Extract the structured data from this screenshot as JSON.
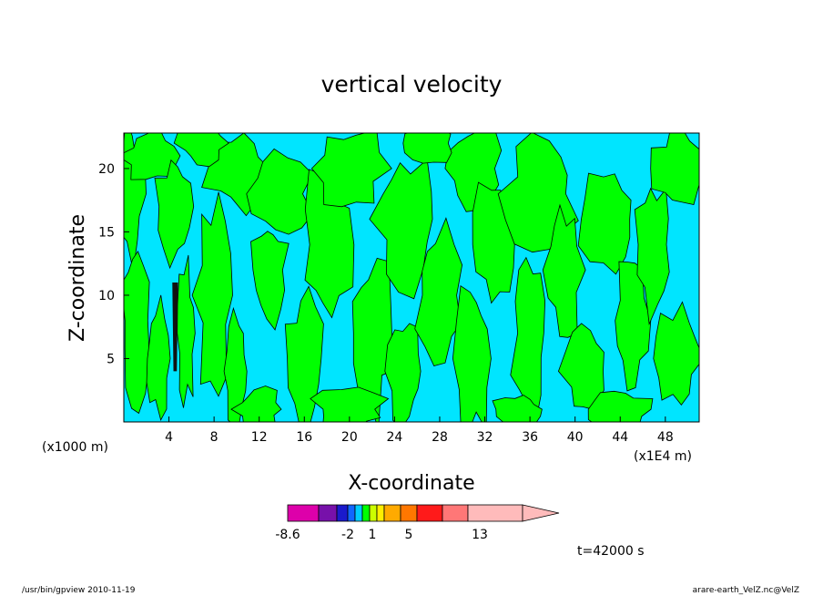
{
  "chart_data": {
    "type": "heatmap",
    "title": "vertical velocity",
    "xlabel": "X-coordinate",
    "ylabel": "Z-coordinate",
    "x_unit_left": "(x1000 m)",
    "x_unit_right": "(x1E4 m)",
    "x_ticks": [
      "4",
      "8",
      "12",
      "16",
      "20",
      "24",
      "28",
      "32",
      "36",
      "40",
      "44",
      "48"
    ],
    "y_ticks": [
      "5",
      "10",
      "15",
      "20"
    ],
    "xlim": [
      0,
      51
    ],
    "ylim": [
      0,
      22.8
    ],
    "colorbar": {
      "labels": [
        "-8.6",
        "-2",
        "1",
        "5",
        "13"
      ],
      "colors": [
        "#dd00aa",
        "#7711aa",
        "#1a1acc",
        "#1166ff",
        "#00ccff",
        "#00ff00",
        "#ccff00",
        "#ffee00",
        "#ffaa00",
        "#ff7700",
        "#ff1a1a",
        "#ff7777",
        "#ffbbbb"
      ]
    },
    "dominant_levels": {
      "background": "#00e5ff",
      "positive": "#00ff00"
    },
    "time_label": "t=42000 s"
  },
  "footer": {
    "left": "/usr/bin/gpview   2010-11-19",
    "right": "arare-earth_VelZ.nc@VelZ"
  }
}
